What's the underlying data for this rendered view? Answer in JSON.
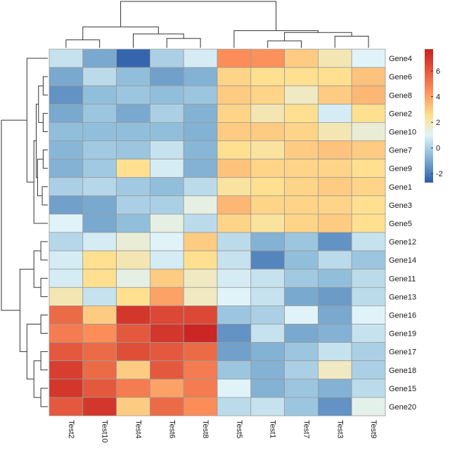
{
  "chart_data": {
    "type": "heatmap",
    "title": "",
    "xlabel": "",
    "ylabel": "",
    "columns": [
      "Test2",
      "Test10",
      "Test4",
      "Test6",
      "Test8",
      "Test5",
      "Test1",
      "Test7",
      "Test3",
      "Test9"
    ],
    "rows": [
      "Gene4",
      "Gene6",
      "Gene8",
      "Gene2",
      "Gene10",
      "Gene7",
      "Gene9",
      "Gene1",
      "Gene3",
      "Gene5",
      "Gene12",
      "Gene14",
      "Gene11",
      "Gene13",
      "Gene16",
      "Gene19",
      "Gene17",
      "Gene18",
      "Gene15",
      "Gene20"
    ],
    "values": [
      [
        0.5,
        -1.0,
        -2.5,
        0.0,
        0.8,
        4.5,
        4.4,
        3.0,
        2.0,
        1.0
      ],
      [
        -1.0,
        0.3,
        -0.5,
        -1.2,
        -0.8,
        2.8,
        2.5,
        2.5,
        2.5,
        3.2
      ],
      [
        -1.5,
        -0.5,
        -0.3,
        -0.5,
        -0.3,
        3.0,
        2.8,
        1.8,
        3.0,
        3.5
      ],
      [
        -1.0,
        -0.3,
        -1.0,
        0.0,
        -0.8,
        2.8,
        2.0,
        2.5,
        0.8,
        2.5
      ],
      [
        -0.5,
        -0.5,
        -0.5,
        -0.5,
        -0.8,
        3.0,
        3.0,
        2.8,
        2.0,
        1.5
      ],
      [
        -0.7,
        -0.2,
        -0.3,
        0.5,
        -0.7,
        2.5,
        2.3,
        3.0,
        3.2,
        3.0
      ],
      [
        -0.8,
        -0.2,
        2.5,
        0.8,
        -0.8,
        3.2,
        2.8,
        2.8,
        2.8,
        2.5
      ],
      [
        0.0,
        0.2,
        -0.2,
        -0.5,
        0.3,
        2.3,
        2.5,
        2.8,
        3.0,
        2.8
      ],
      [
        -1.2,
        -1.0,
        0.0,
        0.0,
        1.3,
        3.5,
        2.8,
        2.8,
        2.8,
        2.5
      ],
      [
        1.0,
        -1.0,
        -0.5,
        1.3,
        0.3,
        2.8,
        2.3,
        2.8,
        3.0,
        2.5
      ],
      [
        0.2,
        0.8,
        1.5,
        1.0,
        3.0,
        0.3,
        -0.8,
        -0.3,
        -1.5,
        0.5
      ],
      [
        0.8,
        2.5,
        2.0,
        0.8,
        2.5,
        0.5,
        -1.8,
        -0.5,
        0.3,
        -0.3
      ],
      [
        0.8,
        2.5,
        1.3,
        3.0,
        1.8,
        0.8,
        0.5,
        -0.2,
        -0.5,
        0.3
      ],
      [
        2.0,
        0.5,
        2.5,
        4.0,
        1.8,
        1.0,
        0.5,
        -1.0,
        -1.3,
        0.3
      ],
      [
        5.5,
        3.0,
        7.0,
        6.5,
        6.5,
        -0.3,
        0.0,
        1.0,
        -1.0,
        1.0
      ],
      [
        5.0,
        4.5,
        6.0,
        7.0,
        7.5,
        -1.5,
        0.5,
        -1.0,
        -0.8,
        0.5
      ],
      [
        6.0,
        5.5,
        6.3,
        6.0,
        5.5,
        -1.2,
        -0.8,
        -0.3,
        0.5,
        0.0
      ],
      [
        6.8,
        5.5,
        3.0,
        6.0,
        5.0,
        -0.3,
        -0.8,
        0.0,
        1.8,
        0.0
      ],
      [
        7.0,
        6.0,
        5.0,
        4.0,
        5.0,
        1.0,
        -0.8,
        -0.3,
        -0.8,
        0.3
      ],
      [
        6.0,
        7.0,
        3.0,
        5.5,
        4.5,
        0.3,
        0.5,
        -0.3,
        -1.5,
        1.2
      ]
    ],
    "color_scale": {
      "min": -2.7,
      "max": 7.7,
      "stops": [
        {
          "value": -2.7,
          "color": "#2c5ca8"
        },
        {
          "value": -0.5,
          "color": "#91bfdb"
        },
        {
          "value": 1.0,
          "color": "#e0f3f8"
        },
        {
          "value": 2.5,
          "color": "#fee090"
        },
        {
          "value": 4.5,
          "color": "#fc8d59"
        },
        {
          "value": 7.7,
          "color": "#c81f1f"
        }
      ]
    },
    "legend": {
      "position": "right",
      "ticks": [
        -2,
        0,
        2,
        4,
        6
      ]
    },
    "col_dendrogram": [
      {
        "node": [
          0,
          1
        ],
        "height": 0.17
      },
      {
        "node": [
          3,
          4
        ],
        "height": 0.2
      },
      {
        "node": [
          2,
          11
        ],
        "height": 0.3
      },
      {
        "node": [
          10,
          12
        ],
        "height": 0.45
      },
      {
        "node": [
          6,
          7
        ],
        "height": 0.15
      },
      {
        "node": [
          8,
          9
        ],
        "height": 0.25
      },
      {
        "node": [
          14,
          15
        ],
        "height": 0.33
      },
      {
        "node": [
          5,
          16
        ],
        "height": 0.37
      },
      {
        "node": [
          13,
          17
        ],
        "height": 1.0
      }
    ],
    "row_dendrogram": [
      {
        "node": [
          1,
          2
        ],
        "height": 0.1
      },
      {
        "node": [
          3,
          4
        ],
        "height": 0.1
      },
      {
        "node": [
          20,
          21
        ],
        "height": 0.2
      },
      {
        "node": [
          5,
          6
        ],
        "height": 0.1
      },
      {
        "node": [
          7,
          8
        ],
        "height": 0.12
      },
      {
        "node": [
          23,
          24
        ],
        "height": 0.22
      },
      {
        "node": [
          22,
          25
        ],
        "height": 0.25
      },
      {
        "node": [
          26,
          9
        ],
        "height": 0.3
      },
      {
        "node": [
          0,
          27
        ],
        "height": 0.45
      },
      {
        "node": [
          10,
          11
        ],
        "height": 0.15
      },
      {
        "node": [
          12,
          13
        ],
        "height": 0.15
      },
      {
        "node": [
          29,
          30
        ],
        "height": 0.3
      },
      {
        "node": [
          14,
          15
        ],
        "height": 0.15
      },
      {
        "node": [
          16,
          17
        ],
        "height": 0.15
      },
      {
        "node": [
          18,
          19
        ],
        "height": 0.15
      },
      {
        "node": [
          33,
          34
        ],
        "height": 0.3
      },
      {
        "node": [
          32,
          35
        ],
        "height": 0.45
      },
      {
        "node": [
          31,
          36
        ],
        "height": 0.6
      },
      {
        "node": [
          28,
          37
        ],
        "height": 1.0
      }
    ]
  }
}
